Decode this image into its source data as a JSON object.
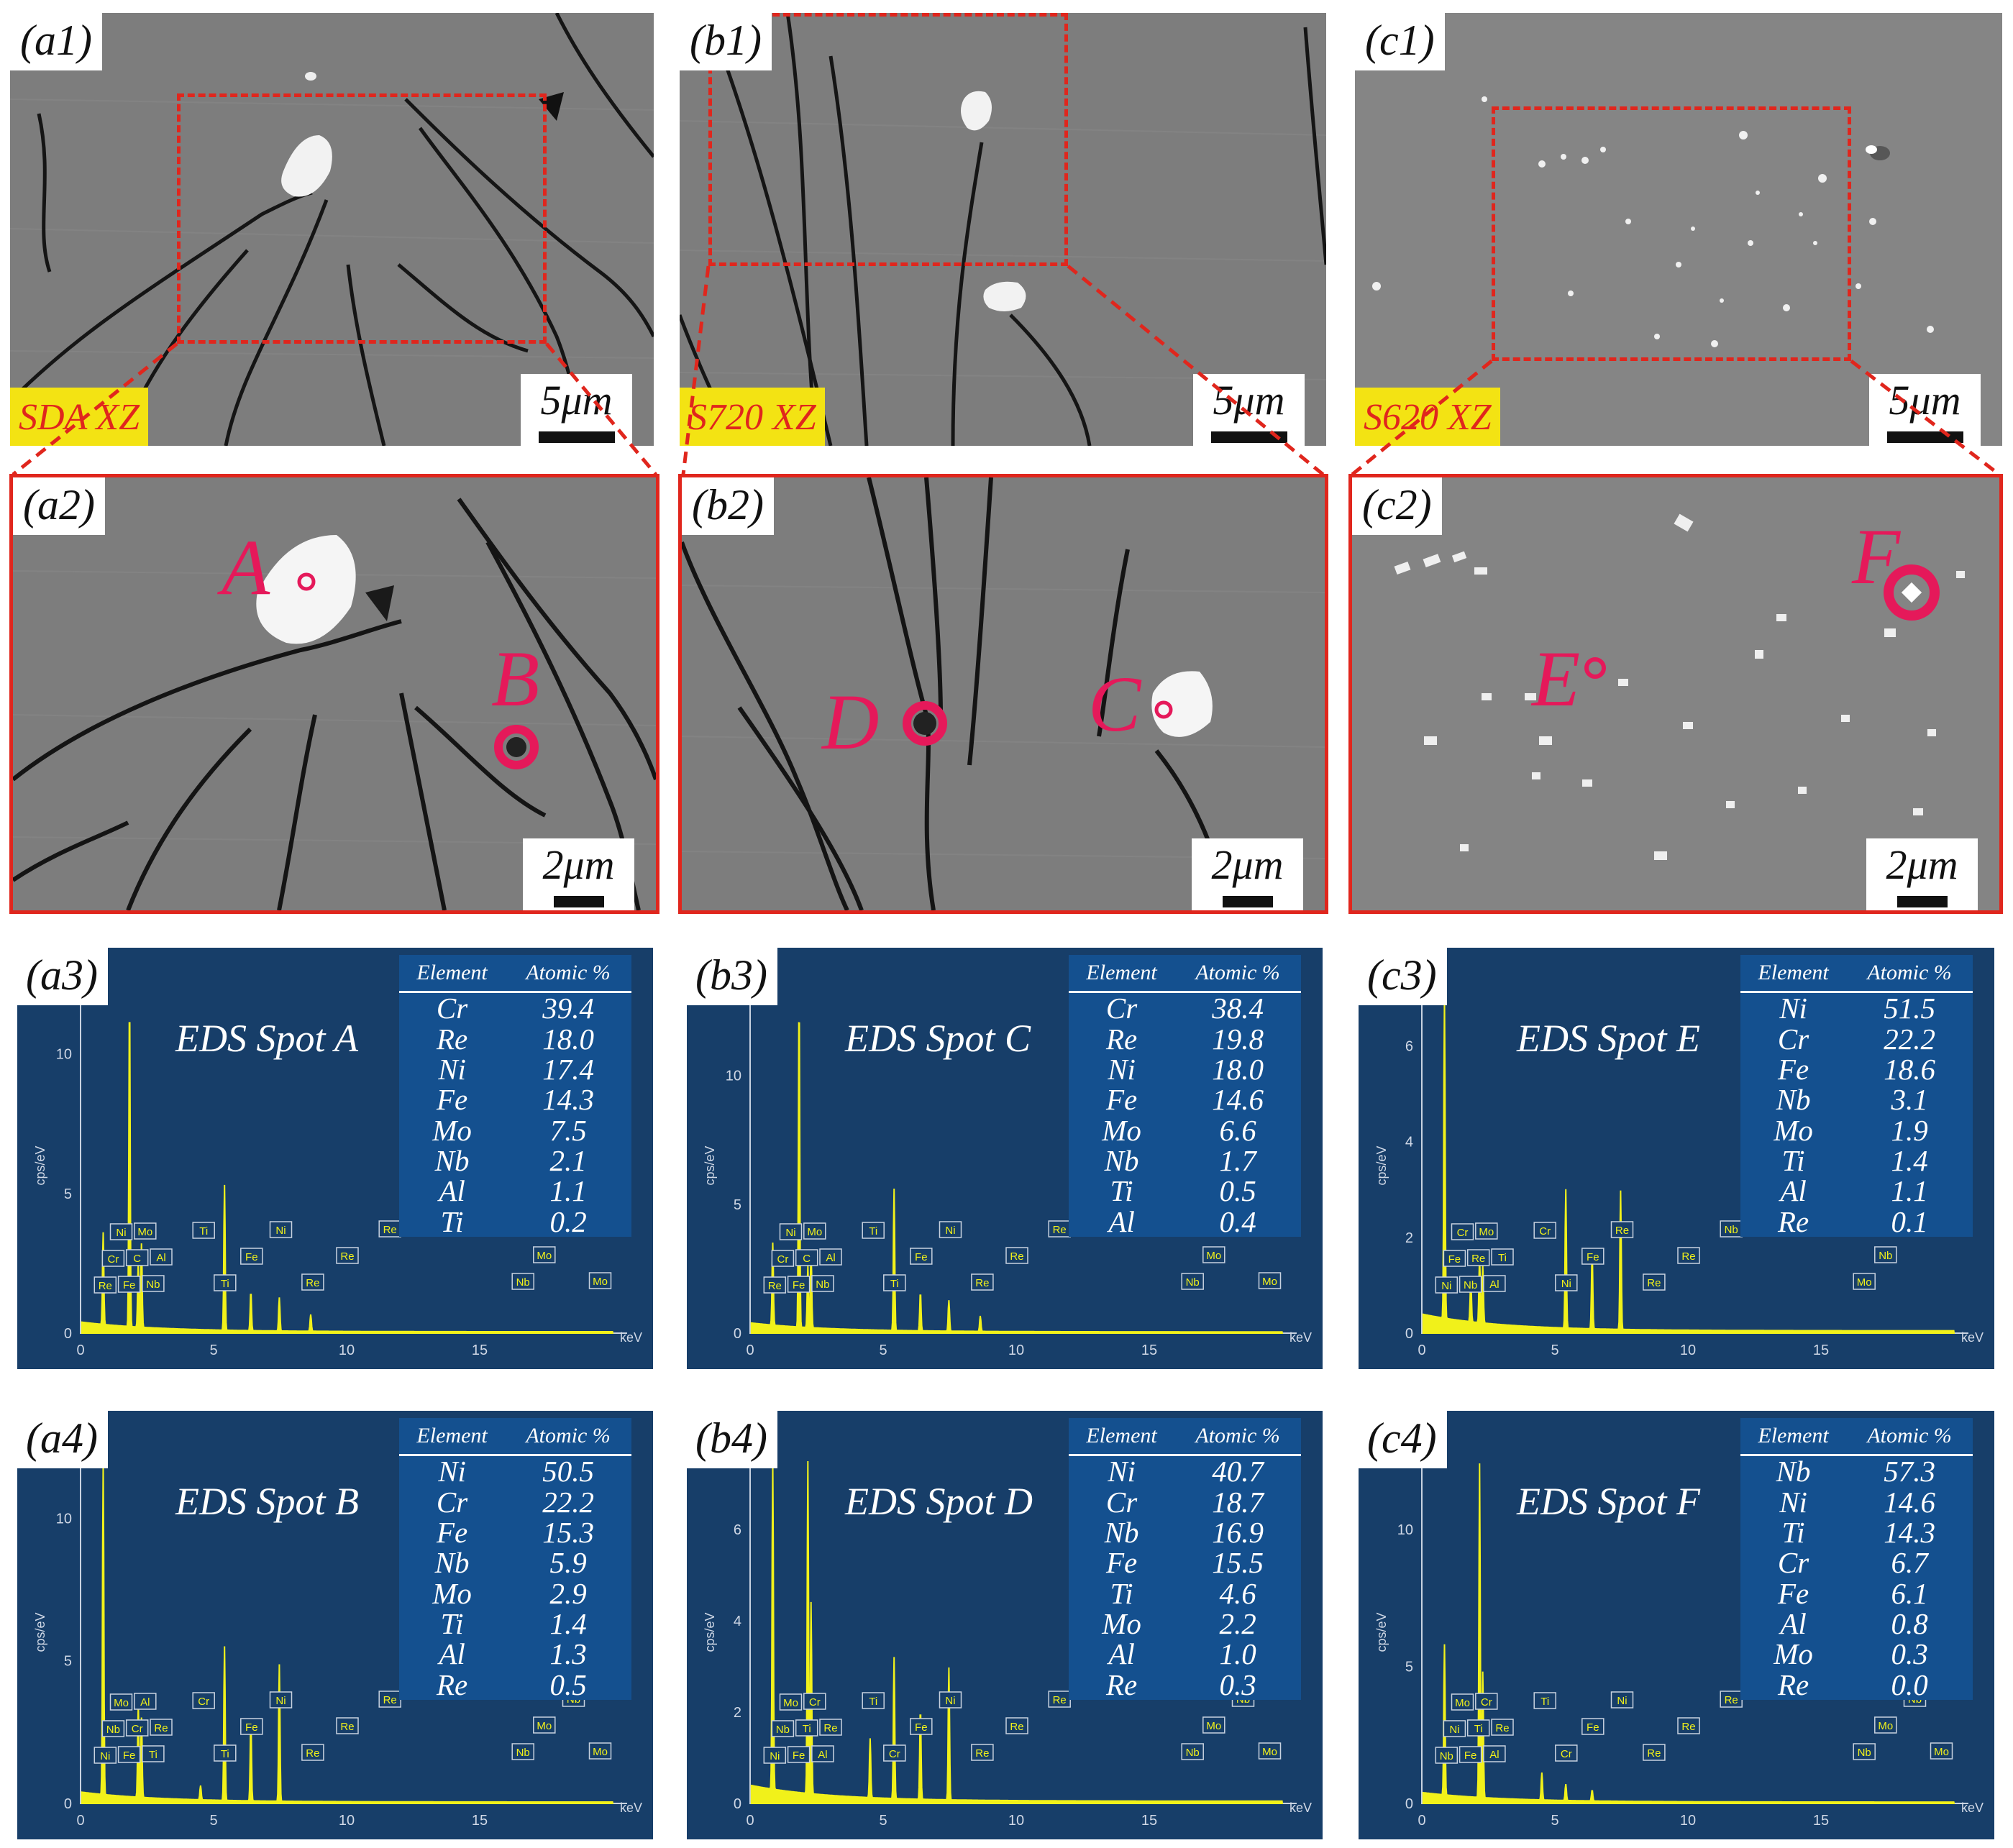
{
  "panels": [
    {
      "id": "a1",
      "label": "(a1)",
      "scale": "5μm",
      "sample": "SDA XZ"
    },
    {
      "id": "b1",
      "label": "(b1)",
      "scale": "5μm",
      "sample": "S720 XZ"
    },
    {
      "id": "c1",
      "label": "(c1)",
      "scale": "5μm",
      "sample": "S620 XZ"
    },
    {
      "id": "a2",
      "label": "(a2)",
      "scale": "2μm",
      "points": [
        "A",
        "B"
      ]
    },
    {
      "id": "b2",
      "label": "(b2)",
      "scale": "2μm",
      "points": [
        "D",
        "C"
      ]
    },
    {
      "id": "c2",
      "label": "(c2)",
      "scale": "2μm",
      "points": [
        "E",
        "F"
      ]
    }
  ],
  "eds": [
    {
      "id": "a3",
      "label": "(a3)",
      "title": "EDS Spot A",
      "table_header": [
        "Element",
        "Atomic %"
      ],
      "rows": [
        [
          "Cr",
          "39.4"
        ],
        [
          "Re",
          "18.0"
        ],
        [
          "Ni",
          "17.4"
        ],
        [
          "Fe",
          "14.3"
        ],
        [
          "Mo",
          "7.5"
        ],
        [
          "Nb",
          "2.1"
        ],
        [
          "Al",
          "1.1"
        ],
        [
          "Ti",
          "0.2"
        ]
      ],
      "y_axis_label": "cps/eV",
      "x_axis_label": "keV",
      "y_ticks": [
        "0",
        "5",
        "10"
      ],
      "x_ticks": [
        "0",
        "5",
        "10",
        "15"
      ],
      "ymax": 12,
      "peaks": [
        {
          "el": "Re",
          "kev": 1.84,
          "cps": 11.8
        },
        {
          "el": "Cr",
          "kev": 5.41,
          "cps": 5.2
        },
        {
          "el": "Ni",
          "kev": 0.85,
          "cps": 3.3
        },
        {
          "el": "Mo",
          "kev": 2.29,
          "cps": 3.0
        },
        {
          "el": "Nb",
          "kev": 2.17,
          "cps": 2.4
        },
        {
          "el": "Fe",
          "kev": 6.4,
          "cps": 1.4
        },
        {
          "el": "Ni",
          "kev": 7.47,
          "cps": 1.2
        },
        {
          "el": "Re",
          "kev": 8.65,
          "cps": 0.6
        }
      ],
      "peak_tags": [
        "Re",
        "Cr",
        "Ni",
        "Fe",
        "C",
        "Mo",
        "Nb",
        "Al",
        "Ti",
        "Ti",
        "Fe",
        "Ni",
        "Re",
        "Re",
        "Re",
        "Nb",
        "Mo",
        "Nb",
        "Mo"
      ]
    },
    {
      "id": "b3",
      "label": "(b3)",
      "title": "EDS Spot C",
      "table_header": [
        "Element",
        "Atomic %"
      ],
      "rows": [
        [
          "Cr",
          "38.4"
        ],
        [
          "Re",
          "19.8"
        ],
        [
          "Ni",
          "18.0"
        ],
        [
          "Fe",
          "14.6"
        ],
        [
          "Mo",
          "6.6"
        ],
        [
          "Nb",
          "1.7"
        ],
        [
          "Ti",
          "0.5"
        ],
        [
          "Al",
          "0.4"
        ]
      ],
      "y_axis_label": "cps/eV",
      "x_axis_label": "keV",
      "y_ticks": [
        "0",
        "5",
        "10"
      ],
      "x_ticks": [
        "0",
        "5",
        "10",
        "15"
      ],
      "ymax": 13,
      "peaks": [
        {
          "el": "Re",
          "kev": 1.84,
          "cps": 12.8
        },
        {
          "el": "Cr",
          "kev": 5.41,
          "cps": 5.5
        },
        {
          "el": "Ni",
          "kev": 0.85,
          "cps": 3.2
        },
        {
          "el": "Mo",
          "kev": 2.29,
          "cps": 3.0
        },
        {
          "el": "Nb",
          "kev": 2.17,
          "cps": 2.4
        },
        {
          "el": "Fe",
          "kev": 6.4,
          "cps": 1.5
        },
        {
          "el": "Ni",
          "kev": 7.47,
          "cps": 1.2
        },
        {
          "el": "Re",
          "kev": 8.65,
          "cps": 0.6
        }
      ],
      "peak_tags": [
        "Re",
        "Cr",
        "Ni",
        "Fe",
        "C",
        "Mo",
        "Nb",
        "Al",
        "Ti",
        "Ti",
        "Fe",
        "Ni",
        "Re",
        "Re",
        "Re",
        "Nb",
        "Mo",
        "Nb",
        "Mo"
      ]
    },
    {
      "id": "c3",
      "label": "(c3)",
      "title": "EDS Spot E",
      "table_header": [
        "Element",
        "Atomic %"
      ],
      "rows": [
        [
          "Ni",
          "51.5"
        ],
        [
          "Cr",
          "22.2"
        ],
        [
          "Fe",
          "18.6"
        ],
        [
          "Nb",
          "3.1"
        ],
        [
          "Mo",
          "1.9"
        ],
        [
          "Ti",
          "1.4"
        ],
        [
          "Al",
          "1.1"
        ],
        [
          "Re",
          "0.1"
        ]
      ],
      "y_axis_label": "cps/eV",
      "x_axis_label": "keV",
      "y_ticks": [
        "0",
        "2",
        "4",
        "6"
      ],
      "x_ticks": [
        "0",
        "5",
        "10",
        "15"
      ],
      "ymax": 7,
      "peaks": [
        {
          "el": "Ni",
          "kev": 0.85,
          "cps": 6.9
        },
        {
          "el": "Cr",
          "kev": 5.41,
          "cps": 2.9
        },
        {
          "el": "Ni",
          "kev": 7.47,
          "cps": 2.9
        },
        {
          "el": "Fe",
          "kev": 6.4,
          "cps": 1.6
        },
        {
          "el": "Nb",
          "kev": 2.17,
          "cps": 1.4
        },
        {
          "el": "Mo",
          "kev": 2.29,
          "cps": 1.2
        },
        {
          "el": "Re",
          "kev": 1.84,
          "cps": 0.9
        }
      ],
      "peak_tags": [
        "Ni",
        "Fe",
        "Cr",
        "Nb",
        "Re",
        "Mo",
        "Al",
        "Ti",
        "Cr",
        "Ni",
        "Fe",
        "Re",
        "Re",
        "Re",
        "Nb",
        "Mo",
        "Nb",
        "Mo"
      ]
    },
    {
      "id": "a4",
      "label": "(a4)",
      "title": "EDS Spot B",
      "table_header": [
        "Element",
        "Atomic %"
      ],
      "rows": [
        [
          "Ni",
          "50.5"
        ],
        [
          "Cr",
          "22.2"
        ],
        [
          "Fe",
          "15.3"
        ],
        [
          "Nb",
          "5.9"
        ],
        [
          "Mo",
          "2.9"
        ],
        [
          "Ti",
          "1.4"
        ],
        [
          "Al",
          "1.3"
        ],
        [
          "Re",
          "0.5"
        ]
      ],
      "y_axis_label": "cps/eV",
      "x_axis_label": "keV",
      "y_ticks": [
        "0",
        "5",
        "10"
      ],
      "x_ticks": [
        "0",
        "5",
        "10",
        "15"
      ],
      "ymax": 12,
      "peaks": [
        {
          "el": "Ni",
          "kev": 0.85,
          "cps": 11.8
        },
        {
          "el": "Cr",
          "kev": 5.41,
          "cps": 5.4
        },
        {
          "el": "Ni",
          "kev": 7.47,
          "cps": 4.8
        },
        {
          "el": "Nb",
          "kev": 2.17,
          "cps": 3.3
        },
        {
          "el": "Mo",
          "kev": 2.29,
          "cps": 2.8
        },
        {
          "el": "Fe",
          "kev": 6.4,
          "cps": 2.9
        },
        {
          "el": "Ti",
          "kev": 4.51,
          "cps": 0.5
        }
      ],
      "peak_tags": [
        "Ni",
        "Nb",
        "Mo",
        "Fe",
        "Cr",
        "Al",
        "Ti",
        "Re",
        "Cr",
        "Ti",
        "Fe",
        "Ni",
        "Re",
        "Re",
        "Re",
        "Nb",
        "Mo",
        "Nb",
        "Mo"
      ]
    },
    {
      "id": "b4",
      "label": "(b4)",
      "title": "EDS Spot D",
      "table_header": [
        "Element",
        "Atomic %"
      ],
      "rows": [
        [
          "Ni",
          "40.7"
        ],
        [
          "Cr",
          "18.7"
        ],
        [
          "Nb",
          "16.9"
        ],
        [
          "Fe",
          "15.5"
        ],
        [
          "Ti",
          "4.6"
        ],
        [
          "Mo",
          "2.2"
        ],
        [
          "Al",
          "1.0"
        ],
        [
          "Re",
          "0.3"
        ]
      ],
      "y_axis_label": "cps/eV",
      "x_axis_label": "keV",
      "y_ticks": [
        "0",
        "2",
        "4",
        "6"
      ],
      "x_ticks": [
        "0",
        "5",
        "10",
        "15"
      ],
      "ymax": 7.5,
      "peaks": [
        {
          "el": "Ni",
          "kev": 0.85,
          "cps": 7.4
        },
        {
          "el": "Nb",
          "kev": 2.17,
          "cps": 7.4
        },
        {
          "el": "Mo",
          "kev": 2.29,
          "cps": 4.2
        },
        {
          "el": "Cr",
          "kev": 5.41,
          "cps": 3.1
        },
        {
          "el": "Ni",
          "kev": 7.47,
          "cps": 2.9
        },
        {
          "el": "Fe",
          "kev": 6.4,
          "cps": 2.0
        },
        {
          "el": "Ti",
          "kev": 4.51,
          "cps": 1.3
        }
      ],
      "peak_tags": [
        "Ni",
        "Nb",
        "Mo",
        "Fe",
        "Ti",
        "Cr",
        "Al",
        "Re",
        "Ti",
        "Cr",
        "Fe",
        "Ni",
        "Re",
        "Re",
        "Re",
        "Nb",
        "Mo",
        "Nb",
        "Mo"
      ]
    },
    {
      "id": "c4",
      "label": "(c4)",
      "title": "EDS Spot F",
      "table_header": [
        "Element",
        "Atomic %"
      ],
      "rows": [
        [
          "Nb",
          "57.3"
        ],
        [
          "Ni",
          "14.6"
        ],
        [
          "Ti",
          "14.3"
        ],
        [
          "Cr",
          "6.7"
        ],
        [
          "Fe",
          "6.1"
        ],
        [
          "Al",
          "0.8"
        ],
        [
          "Mo",
          "0.3"
        ],
        [
          "Re",
          "0.0"
        ]
      ],
      "y_axis_label": "cps/eV",
      "x_axis_label": "keV",
      "y_ticks": [
        "0",
        "5",
        "10"
      ],
      "x_ticks": [
        "0",
        "5",
        "10",
        "15"
      ],
      "ymax": 12.5,
      "peaks": [
        {
          "el": "Nb",
          "kev": 2.17,
          "cps": 12.2
        },
        {
          "el": "Mo",
          "kev": 2.29,
          "cps": 4.6
        },
        {
          "el": "Ni",
          "kev": 0.85,
          "cps": 5.5
        },
        {
          "el": "Ti",
          "kev": 4.51,
          "cps": 1.0
        },
        {
          "el": "Cr",
          "kev": 5.41,
          "cps": 0.6
        },
        {
          "el": "Fe",
          "kev": 6.4,
          "cps": 0.4
        }
      ],
      "peak_tags": [
        "Nb",
        "Ni",
        "Mo",
        "Fe",
        "Ti",
        "Cr",
        "Al",
        "Re",
        "Ti",
        "Cr",
        "Fe",
        "Ni",
        "Re",
        "Re",
        "Re",
        "Nb",
        "Mo",
        "Nb",
        "Mo"
      ]
    }
  ],
  "colors": {
    "annotation": "#e5195a",
    "frame": "#e0261d",
    "sample_bg": "#f3e313",
    "eds_bg": "#173e69",
    "table_bg": "#14508f",
    "spectrum": "#f1f11a"
  }
}
